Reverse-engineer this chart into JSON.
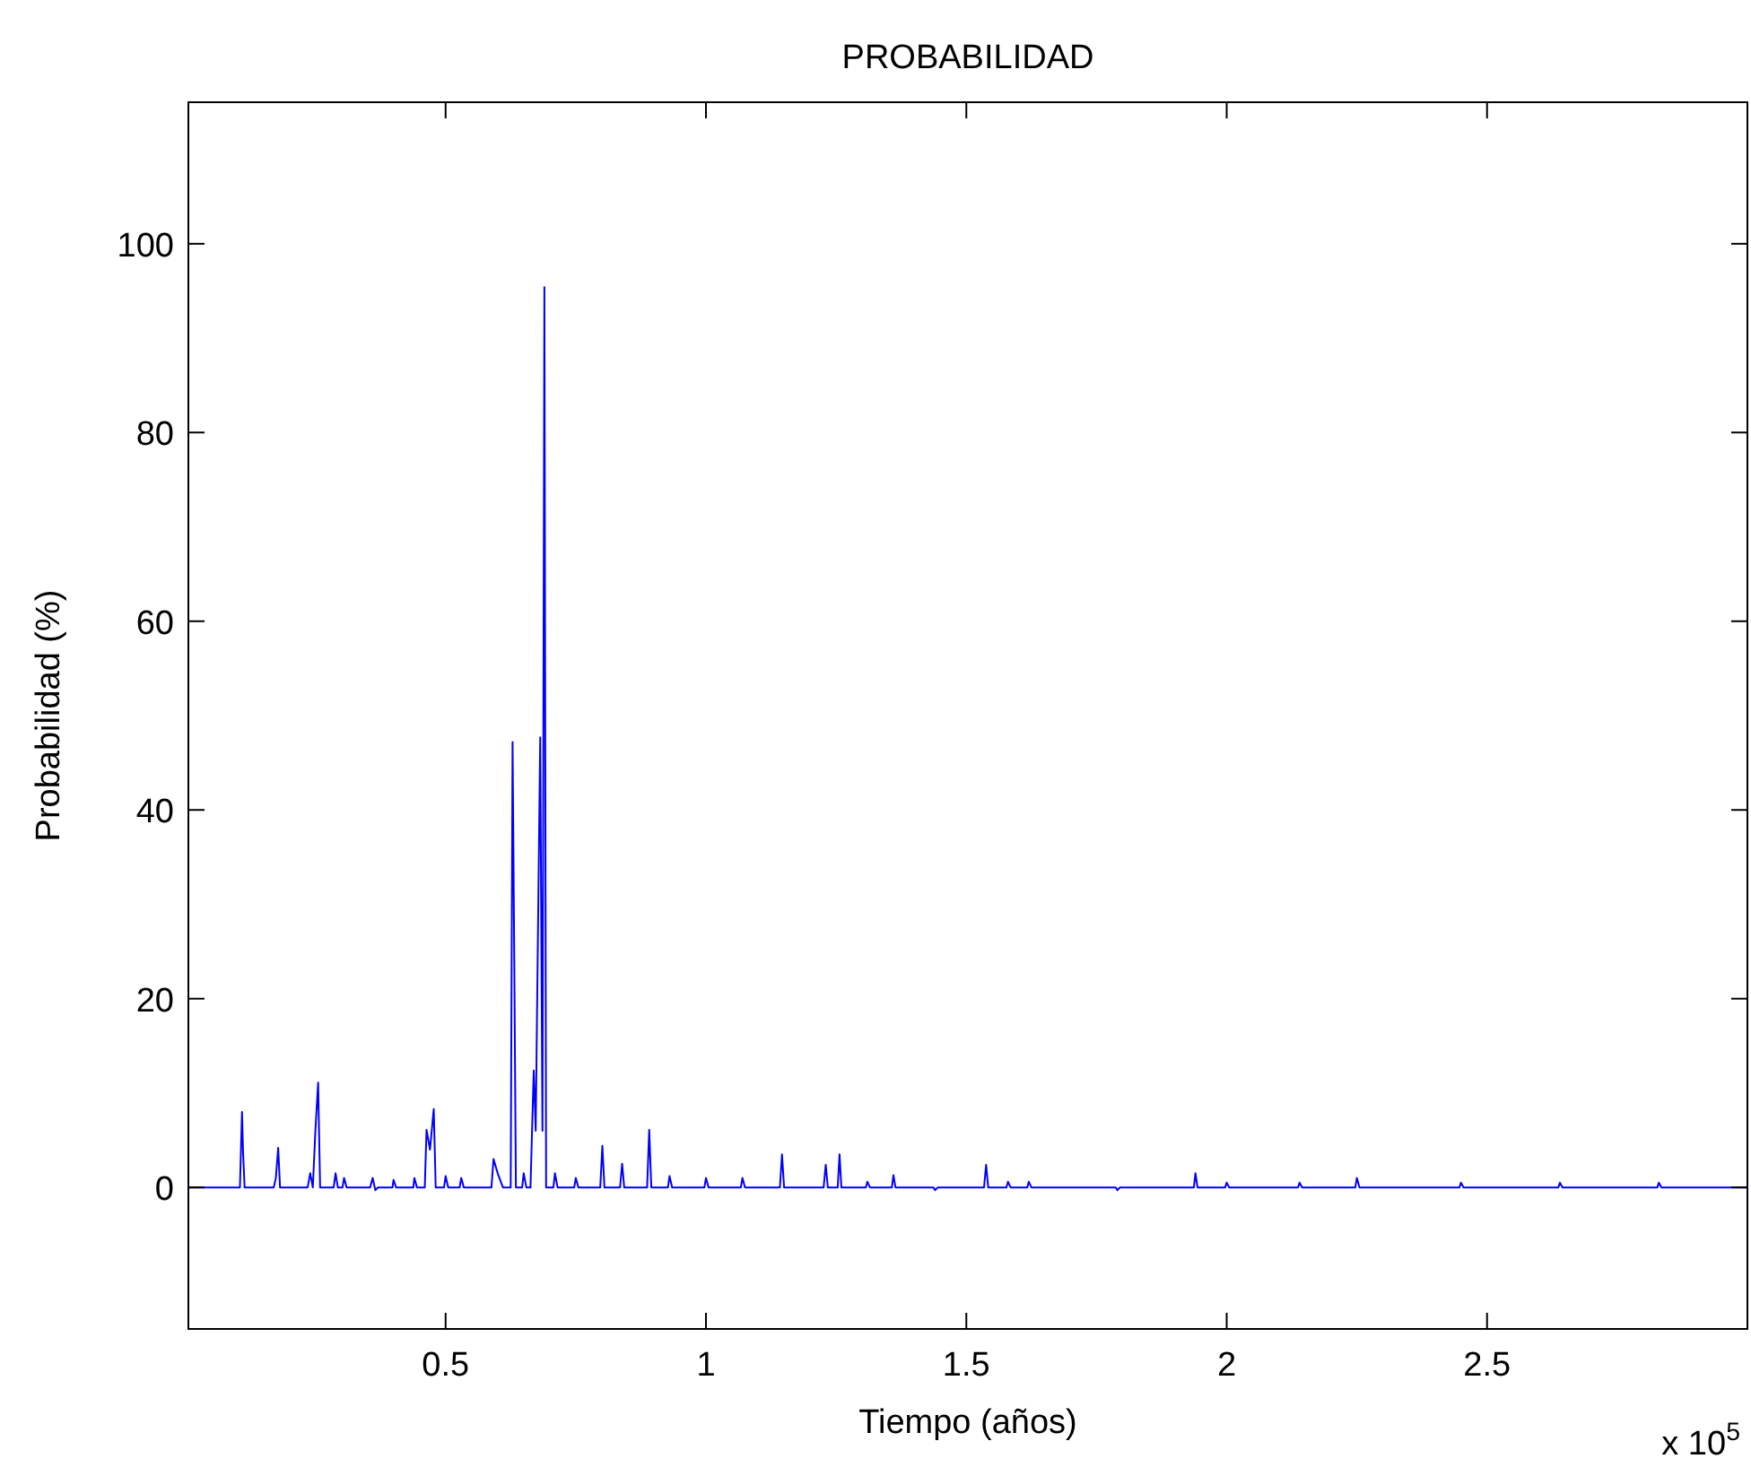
{
  "chart_data": {
    "type": "line",
    "title": "PROBABILIDAD",
    "xlabel": "Tiempo (años)",
    "ylabel": "Probabilidad (%)",
    "annotations": [
      "x 10$^{5}$"
    ],
    "xlim": [
      0.006,
      3
    ],
    "ylim": [
      -15,
      115
    ],
    "xticks": [
      0.5,
      1,
      1.5,
      2,
      2.5
    ],
    "yticks": [
      0,
      20,
      40,
      60,
      80,
      100
    ],
    "grid": false,
    "marker": "none",
    "line_style": "solid",
    "series": [
      {
        "color": "#0000ff",
        "x": [
          0.006,
          0.105,
          0.109,
          0.111,
          0.114,
          0.17,
          0.174,
          0.1785,
          0.182,
          0.235,
          0.24,
          0.245,
          0.25,
          0.2552,
          0.259,
          0.285,
          0.2887,
          0.293,
          0.302,
          0.305,
          0.31,
          0.355,
          0.36,
          0.365,
          0.37,
          0.398,
          0.4,
          0.405,
          0.438,
          0.44,
          0.445,
          0.46,
          0.4634,
          0.47,
          0.4772,
          0.481,
          0.497,
          0.5,
          0.505,
          0.527,
          0.53,
          0.535,
          0.588,
          0.592,
          0.6,
          0.61,
          0.625,
          0.6286,
          0.632,
          0.635,
          0.647,
          0.65,
          0.655,
          0.663,
          0.666,
          0.6693,
          0.673,
          0.6817,
          0.686,
          0.6897,
          0.693,
          0.707,
          0.71,
          0.715,
          0.747,
          0.75,
          0.755,
          0.797,
          0.801,
          0.805,
          0.835,
          0.839,
          0.843,
          0.887,
          0.891,
          0.895,
          0.927,
          0.93,
          0.935,
          0.997,
          1.0,
          1.005,
          1.067,
          1.07,
          1.075,
          1.142,
          1.146,
          1.15,
          1.226,
          1.23,
          1.234,
          1.253,
          1.2565,
          1.26,
          1.307,
          1.31,
          1.315,
          1.357,
          1.36,
          1.364,
          1.437,
          1.44,
          1.445,
          1.534,
          1.538,
          1.542,
          1.577,
          1.58,
          1.585,
          1.617,
          1.62,
          1.625,
          1.787,
          1.79,
          1.795,
          1.937,
          1.94,
          1.944,
          1.997,
          2.0,
          2.005,
          2.137,
          2.14,
          2.145,
          2.247,
          2.25,
          2.255,
          2.447,
          2.45,
          2.455,
          2.637,
          2.64,
          2.645,
          2.827,
          2.83,
          2.835,
          3.0
        ],
        "values": [
          0,
          0,
          8.0,
          3.8,
          0,
          0,
          1.0,
          4.2,
          0,
          0,
          1.5,
          0,
          6.1,
          11.1,
          0,
          0,
          1.5,
          0,
          0,
          1.0,
          0,
          0,
          1.0,
          -0.3,
          0,
          0,
          0.8,
          0,
          0,
          1.0,
          0,
          0,
          6.1,
          4.0,
          8.3,
          0,
          0,
          1.2,
          0,
          0,
          1.0,
          0,
          0,
          3.0,
          1.5,
          0,
          0,
          47.2,
          23.1,
          0,
          0,
          1.5,
          0,
          0,
          6.0,
          12.4,
          6.0,
          47.7,
          6.0,
          95.4,
          0,
          0,
          1.5,
          0,
          0,
          1.0,
          0,
          0,
          4.4,
          0,
          0,
          2.5,
          0,
          0,
          6.1,
          0,
          0,
          1.2,
          0,
          0,
          1.0,
          0,
          0,
          1.0,
          0,
          0,
          3.5,
          0,
          0,
          2.4,
          0,
          0,
          3.5,
          0,
          0,
          0.6,
          0,
          0,
          1.3,
          0,
          0,
          -0.3,
          0,
          0,
          2.4,
          0,
          0,
          0.6,
          0,
          0,
          0.6,
          0,
          0,
          -0.3,
          0,
          0,
          1.5,
          0,
          0,
          0.5,
          0,
          0,
          0.5,
          0,
          0,
          1.0,
          0,
          0,
          0.5,
          0,
          0,
          0.5,
          0,
          0,
          0.5,
          0,
          0
        ]
      }
    ]
  }
}
